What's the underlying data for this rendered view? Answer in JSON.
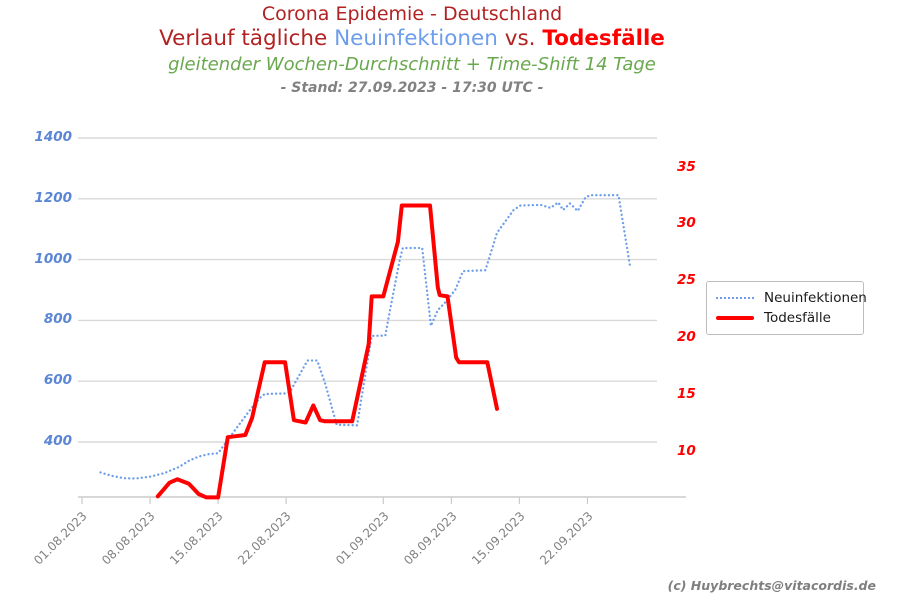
{
  "title": {
    "line1": "Corona Epidemie - Deutschland",
    "line2": {
      "part1": "Verlauf tägliche ",
      "blue": "Neuinfektionen",
      "part2": " vs. ",
      "red": "Todesfälle"
    },
    "subtitle": "gleitender Wochen-Durchschnitt + Time-Shift 14 Tage",
    "stand": "- Stand: 27.09.2023 - 17:30 UTC -"
  },
  "legend": {
    "items": [
      {
        "label": "Neuinfektionen",
        "style": "dotted",
        "color": "#6d9eeb"
      },
      {
        "label": "Todesfälle",
        "style": "solid",
        "color": "#ff0000"
      }
    ]
  },
  "attribution": "(c) Huybrechts@vitacordis.de",
  "colors": {
    "title_dark_red": "#b22222",
    "title_blue": "#6d9eeb",
    "title_bright_red": "#ff0000",
    "subtitle_green": "#6aa84f",
    "muted_gray": "#808080",
    "grid": "#d9d9d9",
    "axis_line": "#cccccc",
    "left_axis_labels": "#5b86d5",
    "right_axis_labels": "#ff0000"
  },
  "chart_data": {
    "type": "line",
    "x_unit": "days since 01.08.2023",
    "x_axis": {
      "ticks": [
        {
          "day": 0,
          "label": "01.08.2023"
        },
        {
          "day": 7,
          "label": "08.08.2023"
        },
        {
          "day": 14,
          "label": "15.08.2023"
        },
        {
          "day": 21,
          "label": "22.08.2023"
        },
        {
          "day": 31,
          "label": "01.09.2023"
        },
        {
          "day": 38,
          "label": "08.09.2023"
        },
        {
          "day": 45,
          "label": "15.09.2023"
        },
        {
          "day": 52,
          "label": "22.09.2023"
        }
      ]
    },
    "left_axis": {
      "title": "Neuinfektionen",
      "ticks": [
        400,
        600,
        800,
        1000,
        1200,
        1400
      ],
      "range": [
        220,
        1433
      ]
    },
    "right_axis": {
      "title": "Todesfälle",
      "ticks": [
        10,
        15,
        20,
        25,
        30,
        35
      ],
      "range": [
        6,
        34.7
      ]
    },
    "grid": true,
    "legend_position": "right",
    "series": [
      {
        "name": "Neuinfektionen",
        "axis": "left",
        "style": "dotted",
        "color": "#6d9eeb",
        "points": [
          [
            1.9,
            300
          ],
          [
            3,
            289
          ],
          [
            4.3,
            281
          ],
          [
            5.5,
            280
          ],
          [
            7,
            286
          ],
          [
            8.5,
            298
          ],
          [
            10,
            318
          ],
          [
            11,
            338
          ],
          [
            12,
            352
          ],
          [
            13,
            360
          ],
          [
            14,
            363
          ],
          [
            15.2,
            415
          ],
          [
            16.3,
            463
          ],
          [
            17.3,
            506
          ],
          [
            18.3,
            545
          ],
          [
            18.8,
            558
          ],
          [
            20.9,
            560
          ],
          [
            21.4,
            565
          ],
          [
            23.2,
            668
          ],
          [
            24.2,
            668
          ],
          [
            25,
            594
          ],
          [
            25.5,
            537
          ],
          [
            26.2,
            457
          ],
          [
            28.3,
            455
          ],
          [
            29.1,
            614
          ],
          [
            29.8,
            749
          ],
          [
            31.2,
            750
          ],
          [
            31.7,
            835
          ],
          [
            32.7,
            1000
          ],
          [
            33,
            1038
          ],
          [
            35,
            1038
          ],
          [
            35.9,
            782
          ],
          [
            36.6,
            834
          ],
          [
            37.3,
            857
          ],
          [
            38.4,
            900
          ],
          [
            39.2,
            962
          ],
          [
            41.5,
            965
          ],
          [
            42.7,
            1088
          ],
          [
            44.4,
            1163
          ],
          [
            45.1,
            1178
          ],
          [
            47.2,
            1180
          ],
          [
            48.2,
            1170
          ],
          [
            49,
            1188
          ],
          [
            49.5,
            1163
          ],
          [
            50.2,
            1185
          ],
          [
            51,
            1160
          ],
          [
            51.8,
            1205
          ],
          [
            52.3,
            1212
          ],
          [
            55.2,
            1212
          ],
          [
            56.4,
            975
          ]
        ]
      },
      {
        "name": "Todesfälle",
        "axis": "right",
        "style": "solid",
        "color": "#ff0000",
        "points": [
          [
            7.8,
            6.1
          ],
          [
            9,
            7.3
          ],
          [
            9.8,
            7.6
          ],
          [
            11,
            7.2
          ],
          [
            12,
            6.3
          ],
          [
            12.8,
            6
          ],
          [
            14,
            6
          ],
          [
            15,
            11.3
          ],
          [
            16.8,
            11.5
          ],
          [
            17.5,
            13
          ],
          [
            18.8,
            17.9
          ],
          [
            20.9,
            17.9
          ],
          [
            21.8,
            12.8
          ],
          [
            23,
            12.6
          ],
          [
            23.8,
            14.1
          ],
          [
            24.5,
            12.8
          ],
          [
            25,
            12.7
          ],
          [
            27.8,
            12.7
          ],
          [
            29.5,
            19.5
          ],
          [
            29.8,
            23.7
          ],
          [
            31,
            23.7
          ],
          [
            32.5,
            28.5
          ],
          [
            32.9,
            31.7
          ],
          [
            35.8,
            31.7
          ],
          [
            36.6,
            24.5
          ],
          [
            36.8,
            23.8
          ],
          [
            37.6,
            23.7
          ],
          [
            38.5,
            18.3
          ],
          [
            38.8,
            17.9
          ],
          [
            41.7,
            17.9
          ],
          [
            42.7,
            13.8
          ]
        ]
      }
    ]
  }
}
